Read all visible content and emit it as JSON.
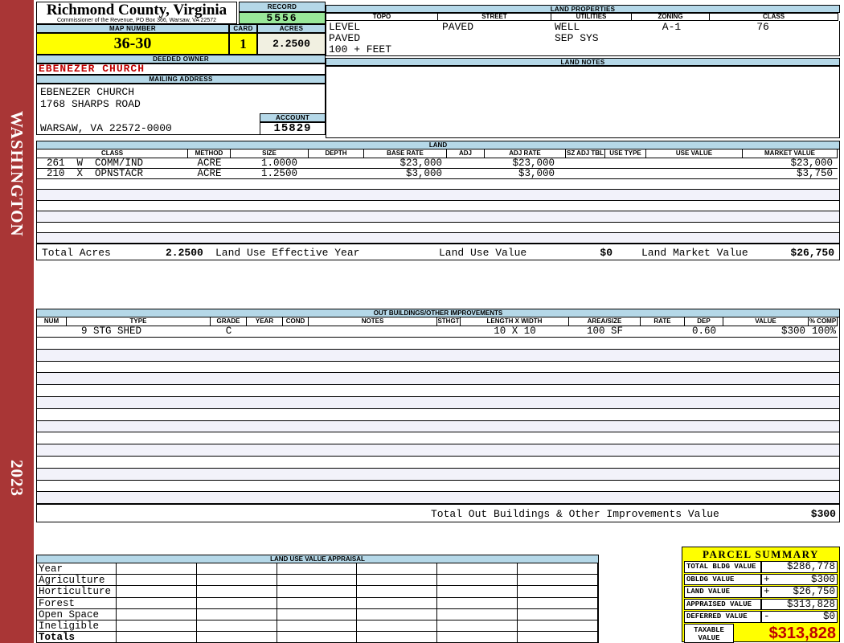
{
  "header": {
    "county": "Richmond County, Virginia",
    "commissioner": "Commissioner of the Revenue, PO Box 366, Warsaw, VA 22572",
    "record_label": "RECORD",
    "record_value": "5556",
    "map_number_label": "MAP NUMBER",
    "map_number": "36-30",
    "card_label": "CARD",
    "card": "1",
    "acres_label": "ACRES",
    "acres": "2.2500"
  },
  "owner": {
    "deeded_owner_label": "DEEDED OWNER",
    "name": "EBENEZER CHURCH",
    "mailing_address_label": "MAILING ADDRESS",
    "address_lines": [
      "EBENEZER CHURCH",
      "1768 SHARPS ROAD",
      "",
      "WARSAW, VA 22572-0000"
    ],
    "account_label": "ACCOUNT",
    "account": "15829"
  },
  "land_properties": {
    "title": "LAND PROPERTIES",
    "columns": [
      "TOPO",
      "STREET",
      "UTILITIES",
      "ZONING",
      "CLASS"
    ],
    "topo": [
      "LEVEL",
      "PAVED",
      "100 + FEET"
    ],
    "street": "PAVED",
    "utilities": [
      "WELL",
      "SEP SYS"
    ],
    "zoning": "A-1",
    "class_value": "76"
  },
  "land_notes": {
    "title": "LAND NOTES",
    "content": ""
  },
  "land": {
    "title": "LAND",
    "columns": [
      "CLASS",
      "METHOD",
      "SIZE",
      "DEPTH",
      "BASE RATE",
      "ADJ",
      "ADJ RATE",
      "SZ ADJ TBL",
      "USE TYPE",
      "USE VALUE",
      "MARKET VALUE"
    ],
    "rows": [
      [
        "261  W  COMM/IND",
        "ACRE",
        "1.0000",
        "",
        "$23,000",
        "",
        "$23,000",
        "",
        "",
        "",
        "$23,000"
      ],
      [
        "210  X  OPNSTACR",
        "ACRE",
        "1.2500",
        "",
        "$3,000",
        "",
        "$3,000",
        "",
        "",
        "",
        "$3,750"
      ]
    ],
    "empty_rows": 6,
    "totals": {
      "total_acres_label": "Total Acres",
      "total_acres": "2.2500",
      "effective_year_label": "Land Use Effective Year",
      "use_value_label": "Land Use Value",
      "use_value": "$0",
      "market_value_label": "Land Market Value",
      "market_value": "$26,750"
    }
  },
  "out_buildings": {
    "title": "OUT BUILDINGS/OTHER IMPROVEMENTS",
    "columns": [
      "NUM",
      "TYPE",
      "GRADE",
      "YEAR",
      "COND",
      "NOTES",
      "STHGT",
      "LENGTH X WIDTH",
      "AREA/SIZE",
      "RATE",
      "DEP",
      "VALUE",
      "% COMP"
    ],
    "rows": [
      [
        "",
        "9 STG SHED",
        "C",
        "",
        "",
        "",
        "",
        "10 X 10",
        "100 SF",
        "",
        "0.60",
        "$300",
        "100%"
      ]
    ],
    "empty_rows": 14,
    "total_label": "Total Out Buildings & Other Improvements Value",
    "total_value": "$300"
  },
  "land_use_appraisal": {
    "title": "LAND USE VALUE APPRAISAL",
    "row_labels": [
      "Year",
      "Agriculture",
      "Horticulture",
      "Forest",
      "Open Space",
      "Ineligible",
      "Totals"
    ],
    "column_count": 6
  },
  "parcel_summary": {
    "title": "PARCEL SUMMARY",
    "rows": [
      {
        "label": "TOTAL BLDG VALUE",
        "op": "",
        "value": "$286,778"
      },
      {
        "label": "OBLDG VALUE",
        "op": "+",
        "value": "$300"
      },
      {
        "label": "LAND VALUE",
        "op": "+",
        "value": "$26,750"
      },
      {
        "label": "APPRAISED VALUE",
        "op": "",
        "value": "$313,828"
      },
      {
        "label": "DEFERRED VALUE",
        "op": "-",
        "value": "$0"
      }
    ],
    "taxable_label_lines": [
      "TAXABLE",
      "VALUE"
    ],
    "taxable_value": "$313,828"
  },
  "sidebar": {
    "district": "WASHINGTON",
    "year": "2023"
  },
  "colors": {
    "spine_red": "#A93636",
    "header_blue": "#B5D8E8",
    "record_green": "#99E899",
    "highlight_yellow": "#FFFF00",
    "acres_cream": "#F1F0E1",
    "owner_red": "#C00000",
    "taxable_red": "#C00000",
    "alt_row": "#F2F2FA"
  }
}
